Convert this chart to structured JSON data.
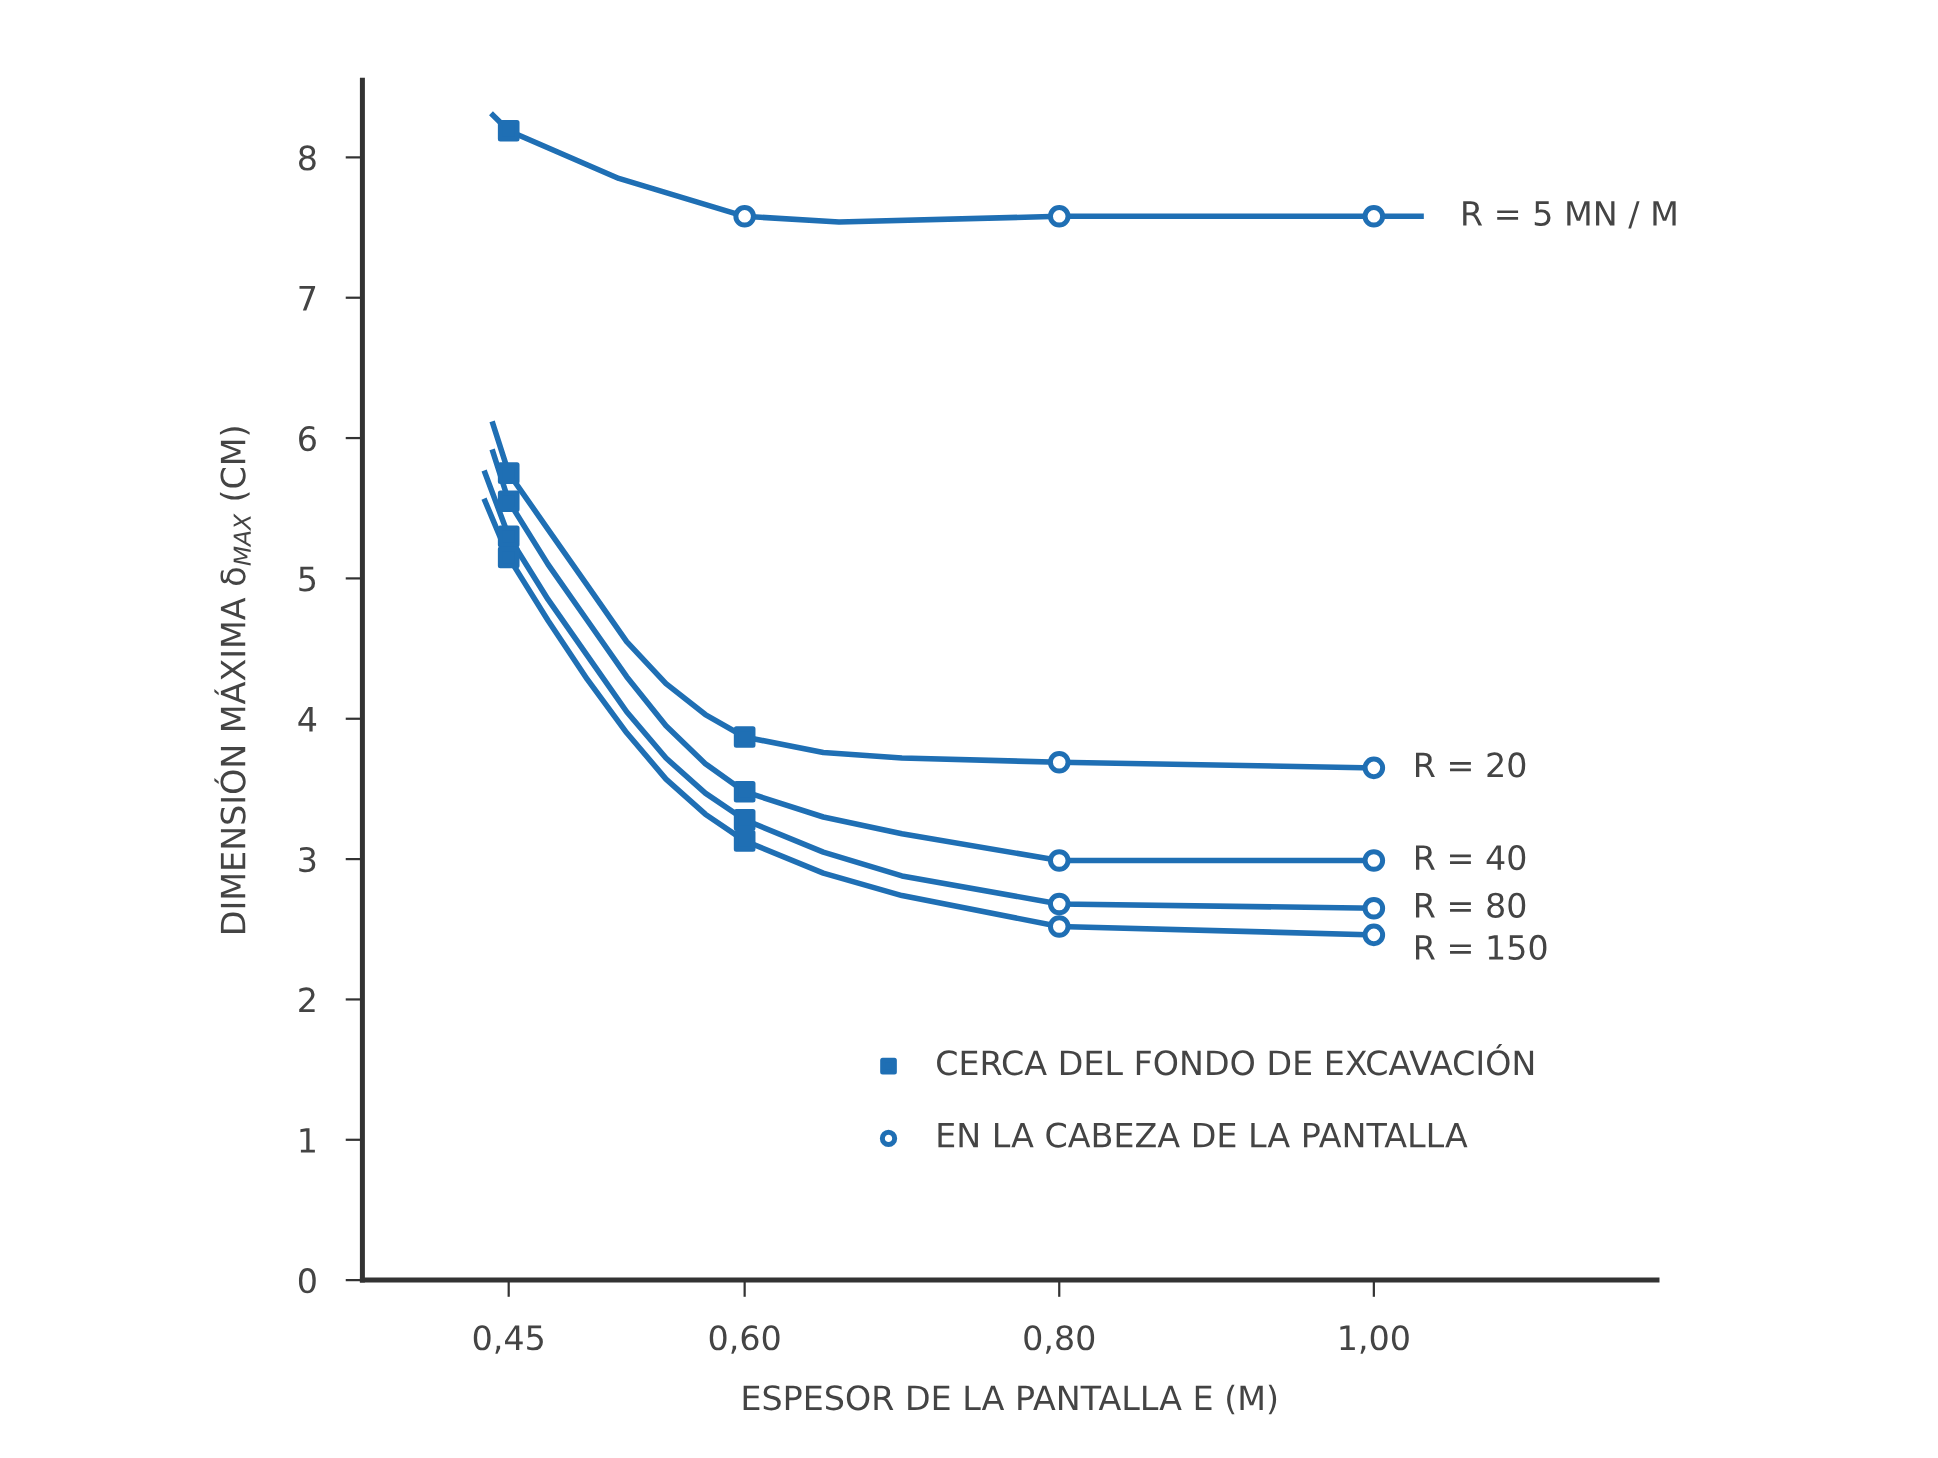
{
  "chart_data": {
    "type": "line",
    "xlabel": "ESPESOR DE LA PANTALLA E (M)",
    "ylabel": "DIMENSIÓN MÁXIMA δ$_{MAX}$ (CM)",
    "xlim": [
      0.357,
      1.18
    ],
    "ylim": [
      0,
      8.55
    ],
    "xticks": [
      {
        "value": 0.45,
        "label": "0,45"
      },
      {
        "value": 0.6,
        "label": "0,60"
      },
      {
        "value": 0.8,
        "label": "0,80"
      },
      {
        "value": 1.0,
        "label": "1,00"
      }
    ],
    "yticks": [
      0,
      1,
      2,
      3,
      4,
      5,
      6,
      7,
      8
    ],
    "grid": false,
    "legend": "bottom right",
    "line_style": "solid",
    "series": [
      {
        "name": "R = 5 MN / M",
        "color": "#1f6fb4",
        "x": [
          0.44,
          0.45,
          0.52,
          0.6,
          0.66,
          0.8,
          1.0,
          1.03
        ],
        "values": [
          8.3,
          8.19,
          7.85,
          7.58,
          7.54,
          7.58,
          7.58,
          7.58
        ]
      },
      {
        "name": "R = 20",
        "color": "#1f6fb4",
        "x": [
          0.44,
          0.45,
          0.475,
          0.5,
          0.525,
          0.55,
          0.575,
          0.6,
          0.65,
          0.7,
          0.8,
          1.0
        ],
        "values": [
          6.1,
          5.75,
          5.35,
          4.95,
          4.55,
          4.25,
          4.03,
          3.87,
          3.76,
          3.72,
          3.69,
          3.65
        ]
      },
      {
        "name": "R = 40",
        "color": "#1f6fb4",
        "x": [
          0.44,
          0.45,
          0.475,
          0.5,
          0.525,
          0.55,
          0.575,
          0.6,
          0.65,
          0.7,
          0.8,
          1.0
        ],
        "values": [
          5.9,
          5.55,
          5.1,
          4.7,
          4.3,
          3.95,
          3.68,
          3.48,
          3.3,
          3.18,
          2.99,
          2.99
        ]
      },
      {
        "name": "R = 80",
        "color": "#1f6fb4",
        "x": [
          0.435,
          0.45,
          0.475,
          0.5,
          0.525,
          0.55,
          0.575,
          0.6,
          0.65,
          0.7,
          0.8,
          1.0
        ],
        "values": [
          5.75,
          5.3,
          4.85,
          4.45,
          4.05,
          3.72,
          3.47,
          3.28,
          3.05,
          2.88,
          2.68,
          2.65
        ]
      },
      {
        "name": "R = 150",
        "color": "#1f6fb4",
        "x": [
          0.435,
          0.45,
          0.475,
          0.5,
          0.525,
          0.55,
          0.575,
          0.6,
          0.65,
          0.7,
          0.8,
          1.0
        ],
        "values": [
          5.55,
          5.15,
          4.7,
          4.28,
          3.9,
          3.57,
          3.32,
          3.13,
          2.9,
          2.74,
          2.52,
          2.46
        ]
      },
      {
        "type": "scatter",
        "name": "CERCA DEL FONDO DE EXCAVACIÓN",
        "color": "#1f6fb4",
        "marker": "square",
        "x": [
          0.45,
          0.45,
          0.45,
          0.45,
          0.45,
          0.6,
          0.6,
          0.6,
          0.6
        ],
        "values": [
          8.19,
          5.75,
          5.55,
          5.3,
          5.15,
          3.87,
          3.48,
          3.28,
          3.13
        ]
      },
      {
        "type": "scatter",
        "name": "EN LA CABEZA DE LA PANTALLA",
        "color": "#1f6fb4",
        "marker": "circle",
        "x": [
          0.6,
          0.8,
          1.0,
          0.8,
          1.0,
          0.8,
          1.0,
          0.8,
          1.0,
          0.8,
          1.0
        ],
        "values": [
          7.58,
          7.58,
          7.58,
          3.69,
          3.65,
          2.99,
          2.99,
          2.68,
          2.65,
          2.52,
          2.46
        ]
      }
    ]
  }
}
